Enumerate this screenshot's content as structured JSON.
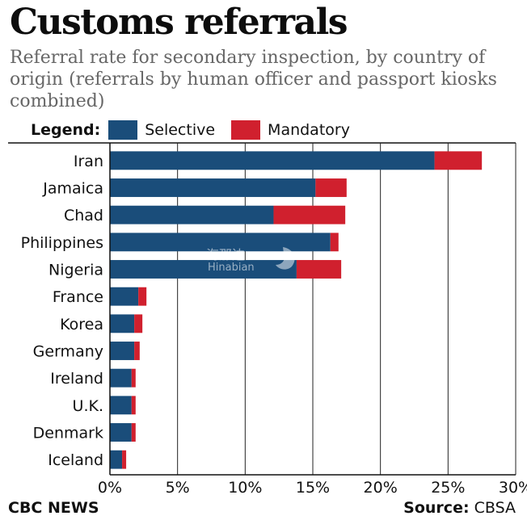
{
  "title": "Customs referrals",
  "subtitle": "Referral rate for secondary inspection, by country of origin (referrals by human officer and passport kiosks combined)",
  "legend": {
    "title": "Legend:",
    "items": [
      {
        "label": "Selective",
        "color": "#1a4d7a"
      },
      {
        "label": "Mandatory",
        "color": "#d0202e"
      }
    ]
  },
  "footer": {
    "publisher": "CBC NEWS",
    "source_label": "Source:",
    "source_value": "CBSA"
  },
  "watermark": {
    "cn": "海那边",
    "en": "Hinabian"
  },
  "chart_data": {
    "type": "bar",
    "orientation": "horizontal",
    "stacked": true,
    "categories": [
      "Iran",
      "Jamaica",
      "Chad",
      "Philippines",
      "Nigeria",
      "France",
      "Korea",
      "Germany",
      "Ireland",
      "U.K.",
      "Denmark",
      "Iceland"
    ],
    "series": [
      {
        "name": "Selective",
        "color": "#1a4d7a",
        "values": [
          24.0,
          15.2,
          12.1,
          16.3,
          13.8,
          2.1,
          1.8,
          1.8,
          1.6,
          1.6,
          1.6,
          0.9
        ]
      },
      {
        "name": "Mandatory",
        "color": "#d0202e",
        "values": [
          3.5,
          2.3,
          5.3,
          0.6,
          3.3,
          0.6,
          0.6,
          0.4,
          0.3,
          0.3,
          0.3,
          0.3
        ]
      }
    ],
    "xlim": [
      0,
      30
    ],
    "xticks": [
      "0%",
      "5%",
      "10%",
      "15%",
      "20%",
      "25%",
      "30%"
    ],
    "grid": true
  }
}
